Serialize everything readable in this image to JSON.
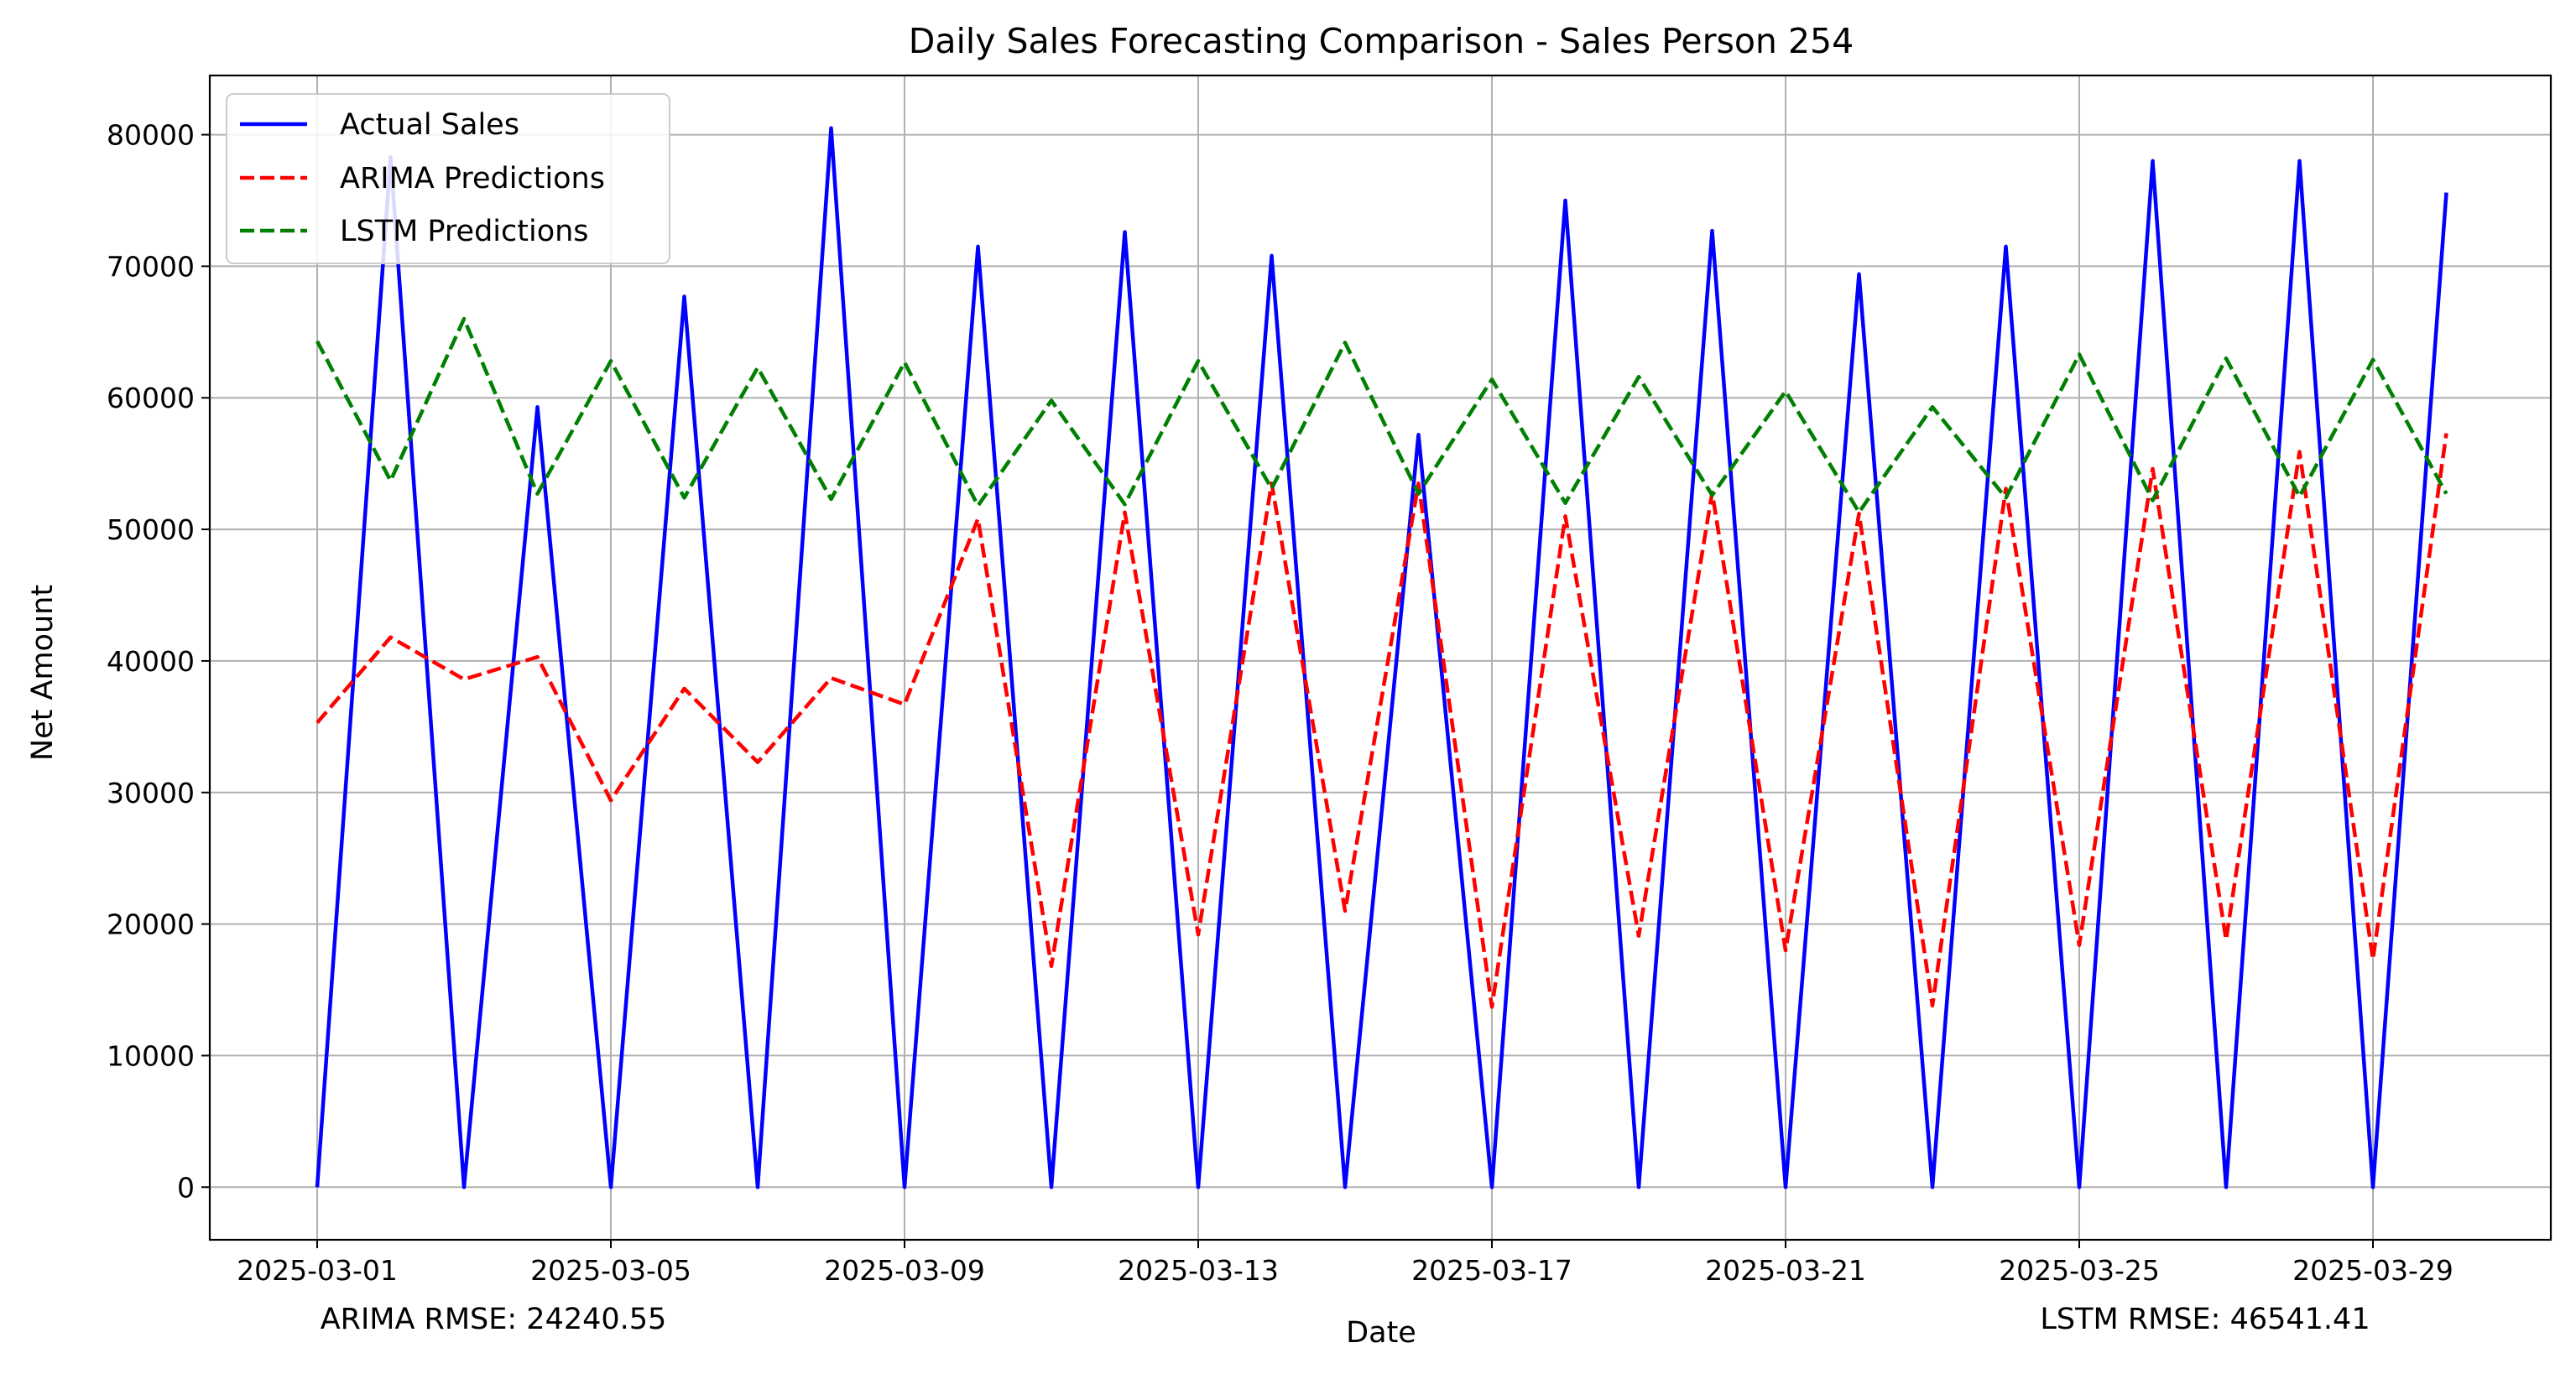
{
  "chart_data": {
    "type": "line",
    "title": "Daily Sales Forecasting Comparison - Sales Person 254",
    "xlabel": "Date",
    "ylabel": "Net Amount",
    "ylim": [
      -4000,
      84500
    ],
    "yticks": [
      0,
      10000,
      20000,
      30000,
      40000,
      50000,
      60000,
      70000,
      80000
    ],
    "xtick_labels": [
      "2025-03-01",
      "2025-03-05",
      "2025-03-09",
      "2025-03-13",
      "2025-03-17",
      "2025-03-21",
      "2025-03-25",
      "2025-03-29"
    ],
    "grid": true,
    "legend_position": "upper-left",
    "x": [
      "2025-03-01",
      "2025-03-02",
      "2025-03-03",
      "2025-03-04",
      "2025-03-05",
      "2025-03-06",
      "2025-03-07",
      "2025-03-08",
      "2025-03-09",
      "2025-03-10",
      "2025-03-11",
      "2025-03-12",
      "2025-03-13",
      "2025-03-14",
      "2025-03-15",
      "2025-03-16",
      "2025-03-17",
      "2025-03-18",
      "2025-03-19",
      "2025-03-20",
      "2025-03-21",
      "2025-03-22",
      "2025-03-23",
      "2025-03-24",
      "2025-03-25",
      "2025-03-26",
      "2025-03-27",
      "2025-03-28",
      "2025-03-29",
      "2025-03-30"
    ],
    "series": [
      {
        "name": "Actual Sales",
        "color": "#0000ff",
        "style": "solid",
        "values": [
          0,
          78300,
          0,
          59300,
          0,
          67700,
          0,
          80500,
          0,
          71500,
          0,
          72600,
          0,
          70800,
          0,
          57200,
          0,
          75000,
          0,
          72700,
          0,
          69400,
          0,
          71500,
          0,
          78000,
          0,
          78000,
          0,
          75600
        ]
      },
      {
        "name": "ARIMA Predictions",
        "color": "#ff0000",
        "style": "dashed",
        "values": [
          35300,
          41800,
          38600,
          40300,
          29400,
          37900,
          32300,
          38700,
          36700,
          50800,
          16800,
          51300,
          19200,
          53500,
          21000,
          53500,
          13700,
          51000,
          19100,
          52800,
          18000,
          51200,
          13800,
          53100,
          18400,
          54600,
          18800,
          55900,
          17300,
          57300
        ]
      },
      {
        "name": "LSTM Predictions",
        "color": "#008000",
        "style": "dashed",
        "values": [
          64300,
          53700,
          66000,
          52700,
          62800,
          52400,
          62300,
          52300,
          62700,
          51800,
          59800,
          51900,
          62800,
          53100,
          64200,
          52700,
          61400,
          52000,
          61600,
          52600,
          60500,
          51300,
          59300,
          52400,
          63300,
          52200,
          63000,
          52500,
          62900,
          52700
        ]
      }
    ],
    "annotations": {
      "arima_rmse": "ARIMA RMSE: 24240.55",
      "lstm_rmse": "LSTM RMSE: 46541.41"
    }
  }
}
